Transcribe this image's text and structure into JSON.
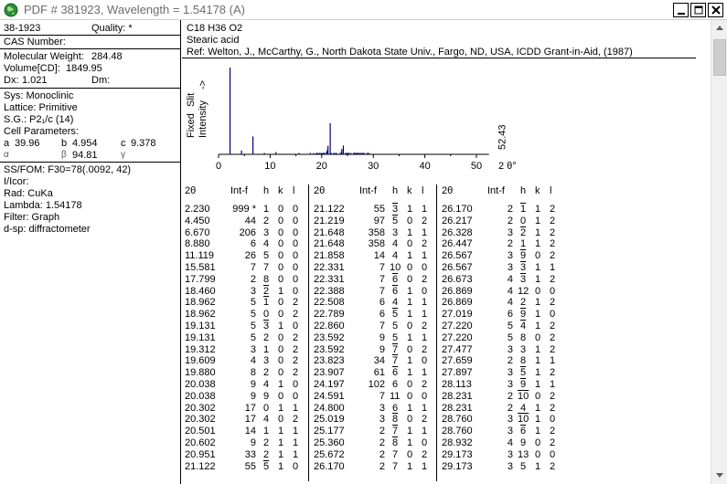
{
  "window": {
    "title": "PDF # 381923,  Wavelength = 1.54178  (A)"
  },
  "left_panel": {
    "pdf_number": "38-1923",
    "quality": "Quality: *",
    "cas_number": "CAS Number:",
    "mol_weight_label": "Molecular Weight:",
    "mol_weight": "284.48",
    "volume_label": "Volume[CD]:",
    "volume": "1849.95",
    "dx_label": "Dx:",
    "dx": "1.021",
    "dm_label": "Dm:",
    "sys": "Sys: Monoclinic",
    "lattice": "Lattice: Primitive",
    "space_group": "S.G.: P2₁/c (14)",
    "cell_params": "Cell Parameters:",
    "a_label": "a",
    "a": "39.96",
    "b_label": "b",
    "b": "4.954",
    "c_label": "c",
    "c": "9.378",
    "alpha_label": "α",
    "beta_label": "β",
    "beta": "94.81",
    "gamma_label": "γ",
    "ssfom": "SS/FOM: F30=78(.0092, 42)",
    "icor": "I/Icor:",
    "rad": "Rad: CuKa",
    "lambda": "Lambda: 1.54178",
    "filter": "Filter: Graph",
    "dsp": "d-sp: diffractometer"
  },
  "right_panel": {
    "formula": "C18 H36 O2",
    "name": "Stearic acid",
    "ref": "Ref: Welton, J., McCarthy, G., North Dakota State Univ., Fargo, ND, USA, ICDD Grant-in-Aid, (1987)"
  },
  "chart_data": {
    "type": "bar",
    "ylabel_lines": [
      "Fixed",
      "Slit",
      "Intensity",
      "->"
    ],
    "xlabel": "2 θ°",
    "x_ticks": [
      "0",
      "10",
      "20",
      "30",
      "40",
      "50"
    ],
    "xlim": [
      0,
      52.43
    ],
    "x_max_label": "52.43",
    "ylim": [
      0,
      999
    ],
    "peaks": [
      {
        "x": 2.23,
        "y": 999
      },
      {
        "x": 4.45,
        "y": 44
      },
      {
        "x": 6.67,
        "y": 206
      },
      {
        "x": 8.88,
        "y": 6
      },
      {
        "x": 11.119,
        "y": 26
      },
      {
        "x": 15.581,
        "y": 7
      },
      {
        "x": 17.799,
        "y": 2
      },
      {
        "x": 18.46,
        "y": 3
      },
      {
        "x": 18.962,
        "y": 5
      },
      {
        "x": 19.131,
        "y": 5
      },
      {
        "x": 19.312,
        "y": 3
      },
      {
        "x": 19.609,
        "y": 4
      },
      {
        "x": 19.88,
        "y": 8
      },
      {
        "x": 20.038,
        "y": 9
      },
      {
        "x": 20.302,
        "y": 17
      },
      {
        "x": 20.501,
        "y": 14
      },
      {
        "x": 20.602,
        "y": 9
      },
      {
        "x": 20.951,
        "y": 33
      },
      {
        "x": 21.122,
        "y": 55
      },
      {
        "x": 21.219,
        "y": 97
      },
      {
        "x": 21.648,
        "y": 358
      },
      {
        "x": 21.858,
        "y": 14
      },
      {
        "x": 22.331,
        "y": 7
      },
      {
        "x": 22.388,
        "y": 7
      },
      {
        "x": 22.508,
        "y": 6
      },
      {
        "x": 22.789,
        "y": 6
      },
      {
        "x": 22.86,
        "y": 7
      },
      {
        "x": 23.592,
        "y": 9
      },
      {
        "x": 23.823,
        "y": 34
      },
      {
        "x": 23.907,
        "y": 61
      },
      {
        "x": 24.197,
        "y": 102
      },
      {
        "x": 24.591,
        "y": 7
      },
      {
        "x": 24.8,
        "y": 3
      },
      {
        "x": 25.019,
        "y": 3
      },
      {
        "x": 25.177,
        "y": 2
      },
      {
        "x": 25.36,
        "y": 2
      },
      {
        "x": 25.672,
        "y": 2
      },
      {
        "x": 26.17,
        "y": 2
      },
      {
        "x": 26.217,
        "y": 2
      },
      {
        "x": 26.328,
        "y": 3
      },
      {
        "x": 26.447,
        "y": 2
      },
      {
        "x": 26.567,
        "y": 3
      },
      {
        "x": 26.673,
        "y": 4
      },
      {
        "x": 26.869,
        "y": 4
      },
      {
        "x": 27.019,
        "y": 6
      },
      {
        "x": 27.22,
        "y": 5
      },
      {
        "x": 27.477,
        "y": 3
      },
      {
        "x": 27.659,
        "y": 2
      },
      {
        "x": 27.897,
        "y": 3
      },
      {
        "x": 28.113,
        "y": 3
      },
      {
        "x": 28.231,
        "y": 2
      },
      {
        "x": 28.76,
        "y": 3
      },
      {
        "x": 28.932,
        "y": 4
      },
      {
        "x": 29.173,
        "y": 3
      }
    ]
  },
  "peak_table": {
    "headers": [
      "2θ",
      "Int-f",
      "h",
      "k",
      "l"
    ],
    "columns": [
      [
        {
          "t": "2.230",
          "i": "999 *",
          "h": "1",
          "k": "0",
          "l": "0"
        },
        {
          "t": "4.450",
          "i": "44",
          "h": "2",
          "k": "0",
          "l": "0"
        },
        {
          "t": "6.670",
          "i": "206",
          "h": "3",
          "k": "0",
          "l": "0"
        },
        {
          "t": "8.880",
          "i": "6",
          "h": "4",
          "k": "0",
          "l": "0"
        },
        {
          "t": "11.119",
          "i": "26",
          "h": "5",
          "k": "0",
          "l": "0"
        },
        {
          "t": "15.581",
          "i": "7",
          "h": "7",
          "k": "0",
          "l": "0"
        },
        {
          "t": "17.799",
          "i": "2",
          "h": "8",
          "k": "0",
          "l": "0"
        },
        {
          "t": "18.460",
          "i": "3",
          "h": "2",
          "hb": true,
          "k": "1",
          "l": "0"
        },
        {
          "t": "18.962",
          "i": "5",
          "h": "1",
          "hb": true,
          "k": "0",
          "l": "2"
        },
        {
          "t": "18.962",
          "i": "5",
          "h": "0",
          "k": "0",
          "l": "2"
        },
        {
          "t": "19.131",
          "i": "5",
          "h": "3",
          "hb": true,
          "k": "1",
          "l": "0"
        },
        {
          "t": "19.131",
          "i": "5",
          "h": "2",
          "k": "0",
          "l": "2"
        },
        {
          "t": "19.312",
          "i": "3",
          "h": "1",
          "k": "0",
          "l": "2"
        },
        {
          "t": "19.609",
          "i": "4",
          "h": "3",
          "k": "0",
          "l": "2"
        },
        {
          "t": "19.880",
          "i": "8",
          "h": "2",
          "k": "0",
          "l": "2"
        },
        {
          "t": "20.038",
          "i": "9",
          "h": "4",
          "k": "1",
          "l": "0"
        },
        {
          "t": "20.038",
          "i": "9",
          "h": "9",
          "k": "0",
          "l": "0"
        },
        {
          "t": "20.302",
          "i": "17",
          "h": "0",
          "k": "1",
          "l": "1"
        },
        {
          "t": "20.302",
          "i": "17",
          "h": "4",
          "k": "0",
          "l": "2"
        },
        {
          "t": "20.501",
          "i": "14",
          "h": "1",
          "k": "1",
          "l": "1"
        },
        {
          "t": "20.602",
          "i": "9",
          "h": "2",
          "k": "1",
          "l": "1"
        },
        {
          "t": "20.951",
          "i": "33",
          "h": "2",
          "k": "1",
          "l": "1"
        },
        {
          "t": "21.122",
          "i": "55",
          "h": "5",
          "hb": true,
          "k": "1",
          "l": "0"
        }
      ],
      [
        {
          "t": "21.122",
          "i": "55",
          "h": "3",
          "hb": true,
          "k": "1",
          "l": "1"
        },
        {
          "t": "21.219",
          "i": "97",
          "h": "5",
          "hb": true,
          "k": "0",
          "l": "2"
        },
        {
          "t": "21.648",
          "i": "358",
          "h": "3",
          "k": "1",
          "l": "1"
        },
        {
          "t": "21.648",
          "i": "358",
          "h": "4",
          "k": "0",
          "l": "2"
        },
        {
          "t": "21.858",
          "i": "14",
          "h": "4",
          "k": "1",
          "l": "1"
        },
        {
          "t": "22.331",
          "i": "7",
          "h": "10",
          "k": "0",
          "l": "0"
        },
        {
          "t": "22.331",
          "i": "7",
          "h": "6",
          "hb": true,
          "k": "0",
          "l": "2"
        },
        {
          "t": "22.388",
          "i": "7",
          "h": "6",
          "hb": true,
          "k": "1",
          "l": "0"
        },
        {
          "t": "22.508",
          "i": "6",
          "h": "4",
          "k": "1",
          "l": "1"
        },
        {
          "t": "22.789",
          "i": "6",
          "h": "5",
          "hb": true,
          "k": "1",
          "l": "1"
        },
        {
          "t": "22.860",
          "i": "7",
          "h": "5",
          "k": "0",
          "l": "2"
        },
        {
          "t": "23.592",
          "i": "9",
          "h": "5",
          "k": "1",
          "l": "1"
        },
        {
          "t": "23.592",
          "i": "9",
          "h": "7",
          "hb": true,
          "k": "0",
          "l": "2"
        },
        {
          "t": "23.823",
          "i": "34",
          "h": "7",
          "hb": true,
          "k": "1",
          "l": "0"
        },
        {
          "t": "23.907",
          "i": "61",
          "h": "6",
          "hb": true,
          "k": "1",
          "l": "1"
        },
        {
          "t": "24.197",
          "i": "102",
          "h": "6",
          "k": "0",
          "l": "2"
        },
        {
          "t": "24.591",
          "i": "7",
          "h": "11",
          "k": "0",
          "l": "0"
        },
        {
          "t": "24.800",
          "i": "3",
          "h": "6",
          "k": "1",
          "l": "1"
        },
        {
          "t": "25.019",
          "i": "3",
          "h": "8",
          "hb": true,
          "k": "0",
          "l": "2"
        },
        {
          "t": "25.177",
          "i": "2",
          "h": "7",
          "hb": true,
          "k": "1",
          "l": "1"
        },
        {
          "t": "25.360",
          "i": "2",
          "h": "8",
          "hb": true,
          "k": "1",
          "l": "0"
        },
        {
          "t": "25.672",
          "i": "2",
          "h": "7",
          "k": "0",
          "l": "2"
        },
        {
          "t": "26.170",
          "i": "2",
          "h": "7",
          "k": "1",
          "l": "1"
        }
      ],
      [
        {
          "t": "26.170",
          "i": "2",
          "h": "1",
          "hb": true,
          "k": "1",
          "l": "2"
        },
        {
          "t": "26.217",
          "i": "2",
          "h": "0",
          "k": "1",
          "l": "2"
        },
        {
          "t": "26.328",
          "i": "3",
          "h": "2",
          "hb": true,
          "k": "1",
          "l": "2"
        },
        {
          "t": "26.447",
          "i": "2",
          "h": "1",
          "k": "1",
          "l": "2"
        },
        {
          "t": "26.567",
          "i": "3",
          "h": "9",
          "hb": true,
          "k": "0",
          "l": "2"
        },
        {
          "t": "26.567",
          "i": "3",
          "h": "3",
          "hb": true,
          "k": "1",
          "l": "1"
        },
        {
          "t": "26.673",
          "i": "4",
          "h": "3",
          "hb": true,
          "k": "1",
          "l": "2"
        },
        {
          "t": "26.869",
          "i": "4",
          "h": "12",
          "k": "0",
          "l": "0"
        },
        {
          "t": "26.869",
          "i": "4",
          "h": "2",
          "k": "1",
          "l": "2"
        },
        {
          "t": "27.019",
          "i": "6",
          "h": "9",
          "hb": true,
          "k": "1",
          "l": "0"
        },
        {
          "t": "27.220",
          "i": "5",
          "h": "4",
          "hb": true,
          "k": "1",
          "l": "2"
        },
        {
          "t": "27.220",
          "i": "5",
          "h": "8",
          "k": "0",
          "l": "2"
        },
        {
          "t": "27.477",
          "i": "3",
          "h": "3",
          "k": "1",
          "l": "2"
        },
        {
          "t": "27.659",
          "i": "2",
          "h": "8",
          "k": "1",
          "l": "1"
        },
        {
          "t": "27.897",
          "i": "3",
          "h": "5",
          "hb": true,
          "k": "1",
          "l": "2"
        },
        {
          "t": "28.113",
          "i": "3",
          "h": "9",
          "hb": true,
          "k": "1",
          "l": "1"
        },
        {
          "t": "28.231",
          "i": "2",
          "h": "10",
          "hb": true,
          "k": "0",
          "l": "2"
        },
        {
          "t": "28.231",
          "i": "2",
          "h": "4",
          "k": "1",
          "l": "2"
        },
        {
          "t": "28.760",
          "i": "3",
          "h": "10",
          "hb": true,
          "k": "1",
          "l": "0"
        },
        {
          "t": "28.760",
          "i": "3",
          "h": "6",
          "hb": true,
          "k": "1",
          "l": "2"
        },
        {
          "t": "28.932",
          "i": "4",
          "h": "9",
          "k": "0",
          "l": "2"
        },
        {
          "t": "29.173",
          "i": "3",
          "h": "13",
          "k": "0",
          "l": "0"
        },
        {
          "t": "29.173",
          "i": "3",
          "h": "5",
          "k": "1",
          "l": "2"
        }
      ]
    ]
  },
  "colors": {
    "peak": "#00007a",
    "title_text": "#6d6d6d"
  }
}
